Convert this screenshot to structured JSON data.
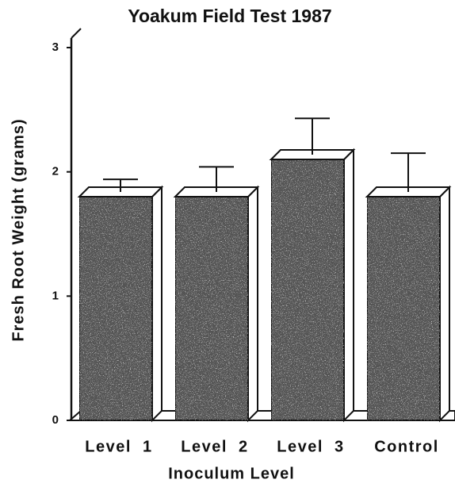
{
  "chart_data": {
    "type": "bar3d",
    "title": "Yoakum  Field Test 1987",
    "x_label": "Inoculum Level",
    "y_label": "Fresh  Root  Weight  (grams)",
    "categories": [
      "Level  1",
      "Level  2",
      "Level  3",
      "Control"
    ],
    "values": [
      1.8,
      1.8,
      2.1,
      1.8
    ],
    "errors": [
      0.14,
      0.24,
      0.33,
      0.35
    ],
    "color": "#555555",
    "ylim": [
      0,
      3
    ],
    "yticks": [
      0,
      1,
      2,
      3
    ]
  }
}
